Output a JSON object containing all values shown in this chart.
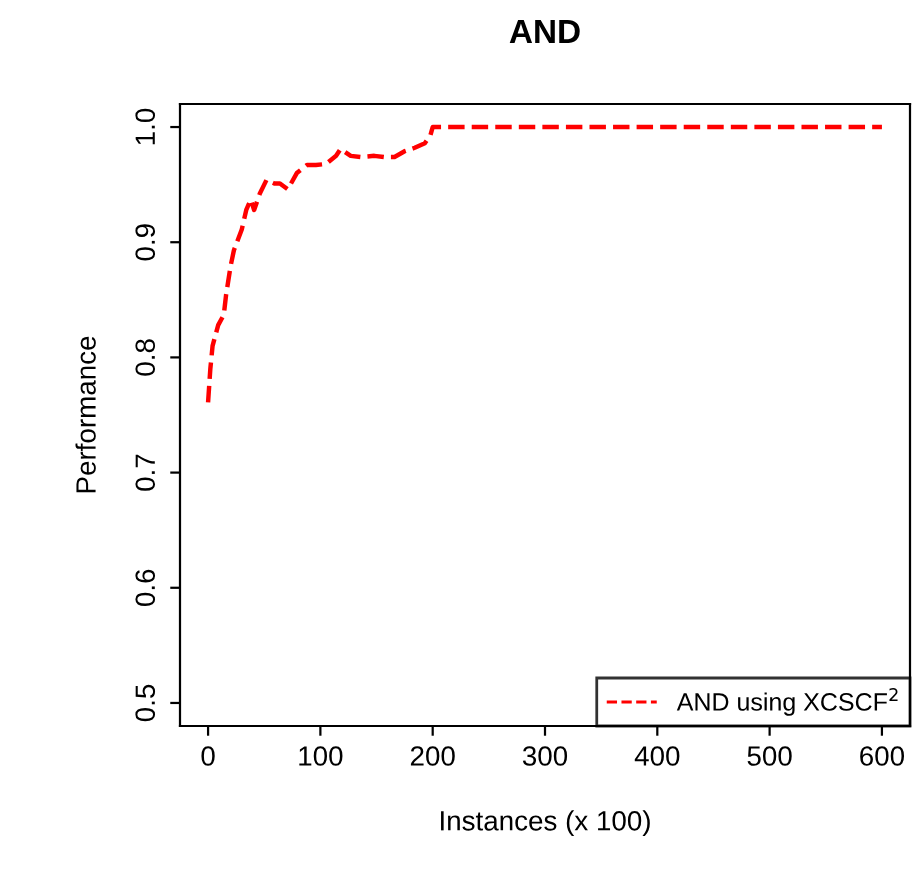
{
  "chart_data": {
    "type": "line",
    "title": "AND",
    "xlabel": "Instances (x 100)",
    "ylabel": "Performance",
    "xlim": [
      -25,
      625
    ],
    "ylim": [
      0.48,
      1.02
    ],
    "xticks": [
      0,
      100,
      200,
      300,
      400,
      500,
      600
    ],
    "yticks": [
      0.5,
      0.6,
      0.7,
      0.8,
      0.9,
      {
        "value": 1.0,
        "label": "1.0"
      }
    ],
    "grid": false,
    "legend": "bottom right",
    "line_style": "dashed",
    "marker": "none",
    "series": [
      {
        "name": "AND using XCSCF$^{2}$",
        "color": "#ff0000",
        "x": [
          0,
          2,
          4,
          9,
          14,
          16,
          20,
          23,
          30,
          34,
          38,
          41,
          46,
          52,
          59,
          64,
          71,
          79,
          88,
          96,
          105,
          114,
          118,
          127,
          136,
          148,
          157,
          166,
          175,
          184,
          193,
          198,
          200,
          300,
          400,
          500,
          600
        ],
        "values": [
          0.761,
          0.79,
          0.81,
          0.828,
          0.837,
          0.854,
          0.879,
          0.893,
          0.911,
          0.928,
          0.937,
          0.928,
          0.942,
          0.954,
          0.951,
          0.951,
          0.946,
          0.96,
          0.967,
          0.967,
          0.968,
          0.975,
          0.981,
          0.975,
          0.974,
          0.975,
          0.974,
          0.974,
          0.979,
          0.982,
          0.986,
          0.993,
          1.0,
          1.0,
          1.0,
          1.0,
          1.0
        ]
      }
    ]
  }
}
